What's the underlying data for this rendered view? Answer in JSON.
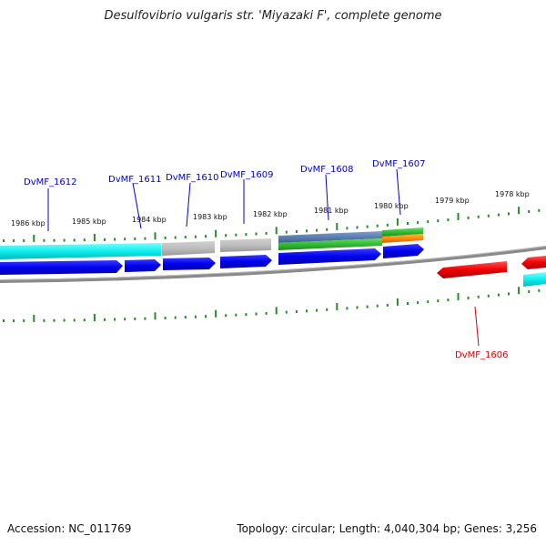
{
  "title": "Desulfovibrio vulgaris str. 'Miyazaki F', complete genome",
  "accession": "Accession: NC_011769",
  "topology": "Topology: circular; Length: 4,040,304 bp; Genes: 3,256",
  "colors": {
    "tick": "#2a8a2a",
    "plus_gene_label": "#0000cc",
    "minus_gene_label": "#dd0000",
    "backbone": "#888888"
  },
  "kbp_labels": [
    "1986 kbp",
    "1985 kbp",
    "1984 kbp",
    "1983 kbp",
    "1982 kbp",
    "1981 kbp",
    "1980 kbp",
    "1979 kbp",
    "1978 kbp"
  ],
  "gene_labels_plus": [
    "DvMF_1612",
    "DvMF_1611",
    "DvMF_1610",
    "DvMF_1609",
    "DvMF_1608",
    "DvMF_1607"
  ],
  "gene_labels_minus": [
    "DvMF_1606"
  ]
}
